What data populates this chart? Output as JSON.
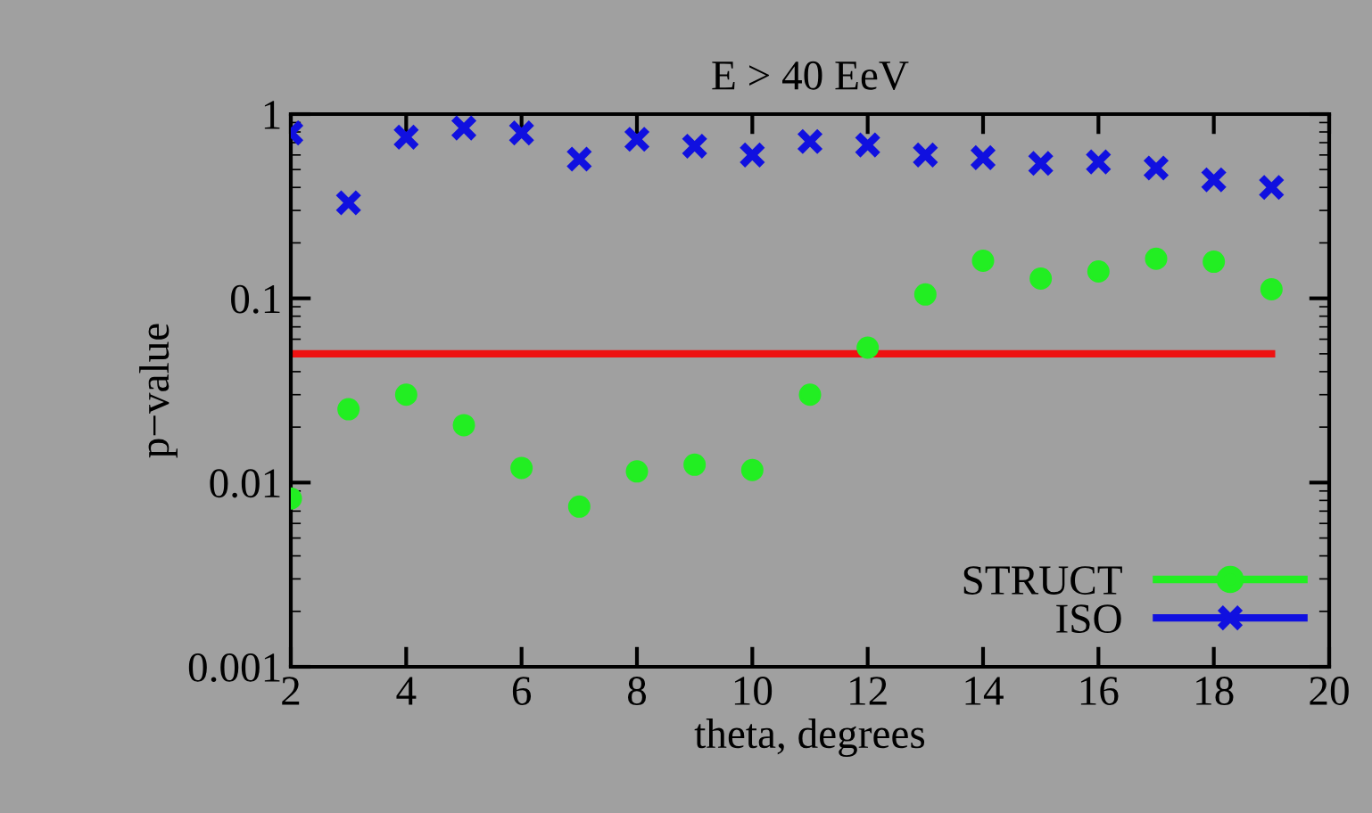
{
  "chart_data": {
    "type": "scatter",
    "title": "E > 40 EeV",
    "xlabel": "theta, degrees",
    "ylabel": "p−value",
    "x": [
      2,
      3,
      4,
      5,
      6,
      7,
      8,
      9,
      10,
      11,
      12,
      13,
      14,
      15,
      16,
      17,
      18,
      19
    ],
    "series": [
      {
        "name": "STRUCT",
        "color": "#22ee22",
        "marker": "circle",
        "values": [
          0.0082,
          0.025,
          0.03,
          0.0205,
          0.012,
          0.0074,
          0.0115,
          0.0125,
          0.0117,
          0.03,
          0.054,
          0.105,
          0.16,
          0.128,
          0.14,
          0.164,
          0.158,
          0.112
        ]
      },
      {
        "name": "ISO",
        "color": "#1010e0",
        "marker": "cross",
        "values": [
          0.79,
          0.33,
          0.75,
          0.84,
          0.79,
          0.57,
          0.73,
          0.67,
          0.6,
          0.71,
          0.68,
          0.6,
          0.58,
          0.54,
          0.55,
          0.51,
          0.44,
          0.4
        ]
      }
    ],
    "ref_lines": [
      {
        "axis": "y",
        "value": 0.05,
        "color": "#ee1111"
      }
    ],
    "log": "y",
    "xlim": [
      2,
      20
    ],
    "xticks": [
      2,
      4,
      6,
      8,
      10,
      12,
      14,
      16,
      18,
      20
    ],
    "ylim": [
      0.001,
      1
    ],
    "yticks": [
      0.001,
      0.01,
      0.1,
      1
    ],
    "grid": false,
    "legend": "bottom right"
  }
}
